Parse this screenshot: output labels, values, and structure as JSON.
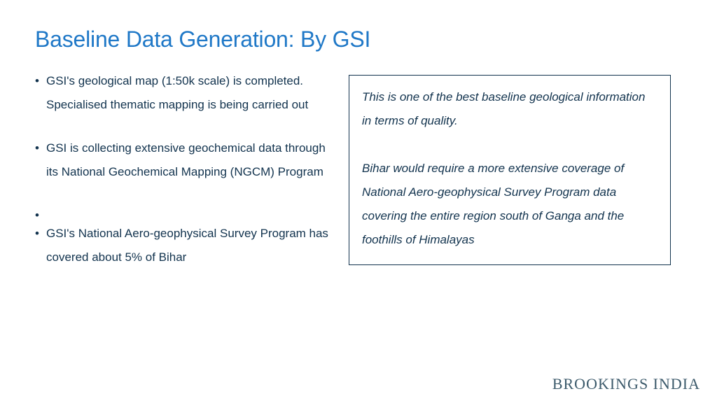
{
  "colors": {
    "title": "#1f78c7",
    "body": "#12334e",
    "callout_border": "#12334e",
    "callout_text": "#12334e",
    "logo": "#3c5a6b",
    "background": "#ffffff"
  },
  "typography": {
    "title_fontsize": 32,
    "body_fontsize": 17,
    "callout_fontsize": 17,
    "logo_fontsize": 22,
    "line_height": 2.0
  },
  "title": "Baseline Data Generation: By GSI",
  "bullets": [
    "GSI's geological map (1:50k scale) is completed. Specialised thematic mapping is being carried out",
    "GSI is collecting extensive geochemical data through its National Geochemical Mapping (NGCM) Program",
    "",
    "GSI's National Aero-geophysical Survey Program has covered about 5% of Bihar"
  ],
  "callout": {
    "paragraphs": [
      "This is one of the best baseline geological information in terms of quality.",
      "Bihar would require a more extensive coverage of National Aero-geophysical Survey Program data covering the entire region south of Ganga and the foothills of Himalayas"
    ]
  },
  "footer_logo": "BROOKINGS INDIA"
}
